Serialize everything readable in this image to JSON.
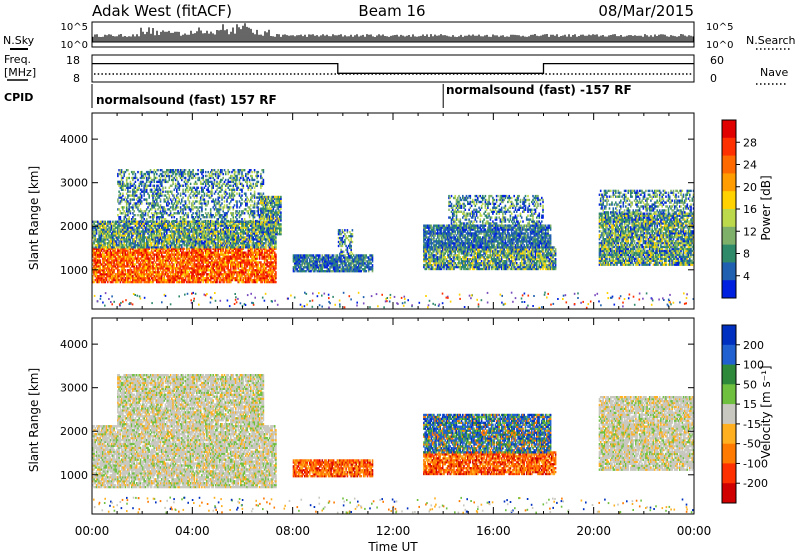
{
  "header": {
    "station": "Adak West (fitACF)",
    "beam": "Beam 16",
    "date": "08/Mar/2015"
  },
  "panels": {
    "nsky_label": "N.Sky",
    "nsearch_label": "N.Search",
    "freq_label_top": "Freq.",
    "freq_label_bottom": "[MHz]",
    "nave_label": "Nave",
    "cpid_label": "CPID",
    "cpid_1": "normalsound (fast) 157 RF",
    "cpid_2": "normalsound (fast) -157 RF",
    "noise_ticks_left": [
      "10^5",
      "10^0"
    ],
    "noise_ticks_right": [
      "10^5",
      "10^0"
    ],
    "freq_ticks": [
      "18",
      "8"
    ],
    "nave_ticks": [
      "60",
      "0"
    ]
  },
  "chart_data": [
    {
      "type": "heatmap",
      "name": "power",
      "ylabel": "Slant Range [km]",
      "ylim": [
        100,
        4600
      ],
      "yticks": [
        1000,
        2000,
        3000,
        4000
      ],
      "xlim": [
        0,
        24
      ],
      "colorbar": {
        "label": "Power [dB]",
        "ticks": [
          "28",
          "24",
          "20",
          "16",
          "12",
          "8",
          "4"
        ],
        "colors": [
          "#e00000",
          "#ff3000",
          "#ff6a00",
          "#ff9c00",
          "#ffd200",
          "#bcd84b",
          "#7fb06a",
          "#2f8a6a",
          "#2060b0",
          "#0020e0"
        ]
      },
      "regions": [
        {
          "t0": 0.0,
          "t1": 7.3,
          "r0": 700,
          "r1": 1500,
          "level": "high"
        },
        {
          "t0": 0.0,
          "t1": 7.3,
          "r0": 1500,
          "r1": 2100,
          "level": "mid"
        },
        {
          "t0": 1.0,
          "t1": 6.8,
          "r0": 2100,
          "r1": 3300,
          "level": "low"
        },
        {
          "t0": 6.7,
          "t1": 7.5,
          "r0": 1800,
          "r1": 2700,
          "level": "mid"
        },
        {
          "t0": 8.0,
          "t1": 11.2,
          "r0": 950,
          "r1": 1350,
          "level": "lowmid"
        },
        {
          "t0": 9.8,
          "t1": 10.4,
          "r0": 1350,
          "r1": 1900,
          "level": "low"
        },
        {
          "t0": 13.2,
          "t1": 18.5,
          "r0": 1000,
          "r1": 1500,
          "level": "mid"
        },
        {
          "t0": 13.2,
          "t1": 18.3,
          "r0": 1500,
          "r1": 2000,
          "level": "lowmid"
        },
        {
          "t0": 14.2,
          "t1": 18.0,
          "r0": 2000,
          "r1": 2700,
          "level": "low"
        },
        {
          "t0": 20.2,
          "t1": 24.0,
          "r0": 1100,
          "r1": 2300,
          "level": "mid"
        },
        {
          "t0": 20.2,
          "t1": 24.0,
          "r0": 2300,
          "r1": 2800,
          "level": "low"
        }
      ]
    },
    {
      "type": "heatmap",
      "name": "velocity",
      "ylabel": "Slant Range [km]",
      "ylim": [
        100,
        4600
      ],
      "yticks": [
        1000,
        2000,
        3000,
        4000
      ],
      "xlim": [
        0,
        24
      ],
      "xticks": [
        "00:00",
        "04:00",
        "08:00",
        "12:00",
        "16:00",
        "20:00",
        "00:00"
      ],
      "xlabel": "Time UT",
      "colorbar": {
        "label": "Velocity [m s⁻¹]",
        "ticks": [
          "200",
          "100",
          "50",
          "15",
          "-15",
          "-50",
          "-100",
          "-200"
        ],
        "colors": [
          "#0030c0",
          "#2060d0",
          "#2e8a3a",
          "#70c040",
          "#c8c8c0",
          "#ffb020",
          "#ff7a00",
          "#ff3000",
          "#d00000"
        ]
      },
      "regions": [
        {
          "t0": 0.0,
          "t1": 7.3,
          "r0": 700,
          "r1": 2100,
          "level": "ground"
        },
        {
          "t0": 1.0,
          "t1": 6.8,
          "r0": 2100,
          "r1": 3300,
          "level": "ground"
        },
        {
          "t0": 8.0,
          "t1": 11.2,
          "r0": 950,
          "r1": 1350,
          "level": "away"
        },
        {
          "t0": 13.2,
          "t1": 18.5,
          "r0": 1000,
          "r1": 1500,
          "level": "away"
        },
        {
          "t0": 13.2,
          "t1": 18.3,
          "r0": 1500,
          "r1": 2400,
          "level": "toward"
        },
        {
          "t0": 20.2,
          "t1": 24.0,
          "r0": 1100,
          "r1": 2800,
          "level": "ground"
        }
      ]
    }
  ],
  "frequency_mhz": [
    {
      "t0": 0.0,
      "t1": 9.8,
      "value": 14.5
    },
    {
      "t0": 9.8,
      "t1": 18.0,
      "value": 10.0
    },
    {
      "t0": 18.0,
      "t1": 24.0,
      "value": 14.5
    }
  ],
  "cpid_switch_time": 14.0
}
